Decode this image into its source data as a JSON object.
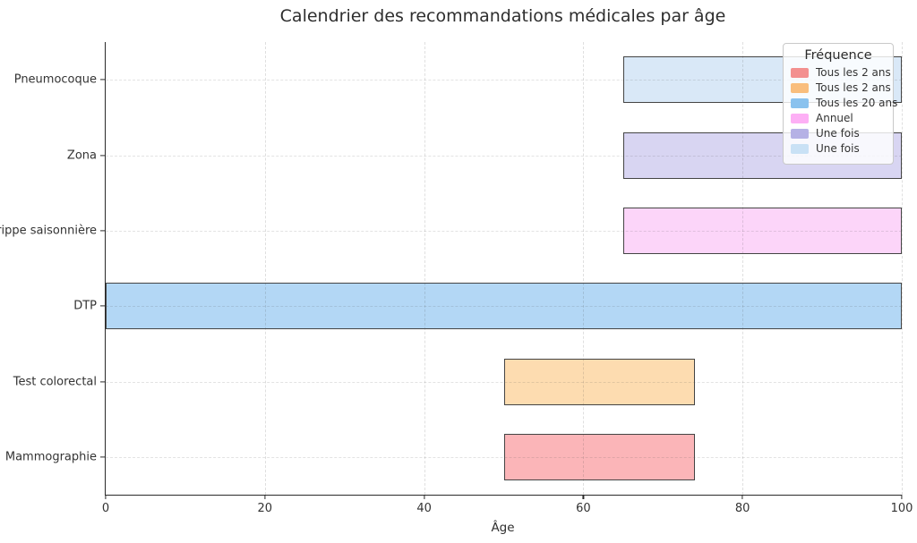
{
  "figure": {
    "title": "Calendrier des recommandations médicales par âge",
    "xlabel": "Âge"
  },
  "chart_data": {
    "type": "bar",
    "orientation": "horizontal",
    "title": "Calendrier des recommandations médicales par âge",
    "xlabel": "Âge",
    "ylabel": "",
    "xlim": [
      0,
      100
    ],
    "xticks": [
      0,
      20,
      40,
      60,
      80,
      100
    ],
    "grid": "dashed vertical and horizontal gridlines",
    "categories_top_to_bottom": [
      "Pneumocoque",
      "Zona",
      "Grippe saisonnière",
      "DTP",
      "Test colorectal",
      "Mammographie"
    ],
    "bars": [
      {
        "category": "Pneumocoque",
        "age_start": 65,
        "age_end": 100,
        "frequency": "Une fois",
        "fill": "#d9e8f7"
      },
      {
        "category": "Zona",
        "age_start": 65,
        "age_end": 100,
        "frequency": "Une fois",
        "fill": "#d8d5f2"
      },
      {
        "category": "Grippe saisonnière",
        "age_start": 65,
        "age_end": 100,
        "frequency": "Annuel",
        "fill": "#fcd5f9"
      },
      {
        "category": "DTP",
        "age_start": 0,
        "age_end": 100,
        "frequency": "Tous les 20 ans",
        "fill": "#b3d7f5"
      },
      {
        "category": "Test colorectal",
        "age_start": 50,
        "age_end": 74,
        "frequency": "Tous les 2 ans",
        "fill": "#fddcb0"
      },
      {
        "category": "Mammographie",
        "age_start": 50,
        "age_end": 74,
        "frequency": "Tous les 2 ans",
        "fill": "#fbb5b8"
      }
    ],
    "legend": {
      "title": "Fréquence",
      "position": "upper right",
      "entries": [
        {
          "label": "Tous les 2 ans",
          "color": "#f3908f"
        },
        {
          "label": "Tous les 2 ans",
          "color": "#f9be7d"
        },
        {
          "label": "Tous les 20 ans",
          "color": "#8ac2ee"
        },
        {
          "label": "Annuel",
          "color": "#fdaff5"
        },
        {
          "label": "Une fois",
          "color": "#b5b1e5"
        },
        {
          "label": "Une fois",
          "color": "#c9e1f5"
        }
      ]
    },
    "colors": {
      "bar_edge": "#444444",
      "spine": "#2a2a2a",
      "text": "#333333"
    }
  }
}
